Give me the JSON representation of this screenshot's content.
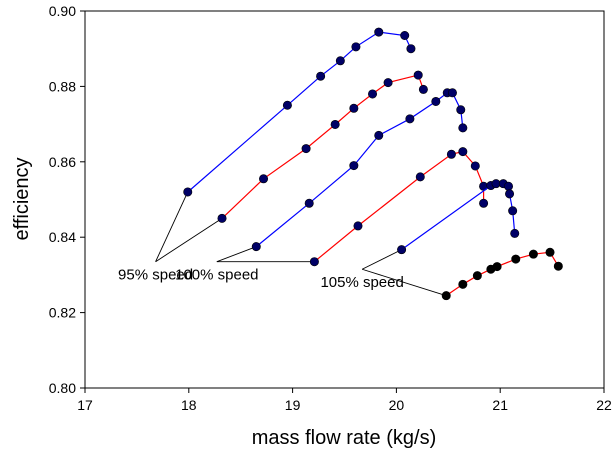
{
  "chart_data": {
    "type": "line",
    "xlabel": "mass flow rate (kg/s)",
    "ylabel": "efficiency",
    "xlim": [
      17,
      22
    ],
    "ylim": [
      0.8,
      0.9
    ],
    "x_ticks": [
      "17",
      "18",
      "19",
      "20",
      "21",
      "22"
    ],
    "y_ticks": [
      "0.80",
      "0.82",
      "0.84",
      "0.86",
      "0.88",
      "0.90"
    ],
    "grid": false,
    "legend": "none",
    "series": [
      {
        "color": "#0000ff",
        "marker_color": "#000066",
        "points": [
          [
            17.99,
            0.852
          ],
          [
            18.95,
            0.875
          ],
          [
            19.27,
            0.8827
          ],
          [
            19.46,
            0.8868
          ],
          [
            19.61,
            0.8905
          ],
          [
            19.83,
            0.8944
          ],
          [
            20.08,
            0.8935
          ],
          [
            20.14,
            0.89
          ]
        ]
      },
      {
        "color": "#ff0000",
        "marker_color": "#000066",
        "points": [
          [
            18.32,
            0.845
          ],
          [
            18.72,
            0.8555
          ],
          [
            19.13,
            0.8635
          ],
          [
            19.41,
            0.8699
          ],
          [
            19.59,
            0.8742
          ],
          [
            19.77,
            0.878
          ],
          [
            19.92,
            0.881
          ],
          [
            20.21,
            0.883
          ],
          [
            20.26,
            0.8792
          ]
        ]
      },
      {
        "color": "#0000ff",
        "marker_color": "#000066",
        "points": [
          [
            18.65,
            0.8375
          ],
          [
            19.16,
            0.849
          ],
          [
            19.59,
            0.859
          ],
          [
            19.83,
            0.867
          ],
          [
            20.13,
            0.8714
          ],
          [
            20.38,
            0.876
          ],
          [
            20.49,
            0.8783
          ],
          [
            20.54,
            0.8783
          ],
          [
            20.62,
            0.8738
          ],
          [
            20.64,
            0.869
          ]
        ]
      },
      {
        "color": "#ff0000",
        "marker_color": "#000066",
        "points": [
          [
            19.21,
            0.8335
          ],
          [
            19.63,
            0.843
          ],
          [
            20.23,
            0.856
          ],
          [
            20.53,
            0.862
          ],
          [
            20.64,
            0.8627
          ],
          [
            20.76,
            0.8589
          ],
          [
            20.84,
            0.8535
          ],
          [
            20.84,
            0.849
          ]
        ]
      },
      {
        "color": "#0000ff",
        "marker_color": "#000066",
        "points": [
          [
            20.05,
            0.8367
          ],
          [
            20.91,
            0.8537
          ],
          [
            20.96,
            0.8542
          ],
          [
            21.03,
            0.8542
          ],
          [
            21.08,
            0.8535
          ],
          [
            21.09,
            0.8515
          ],
          [
            21.12,
            0.847
          ],
          [
            21.14,
            0.841
          ]
        ]
      },
      {
        "color": "#ff0000",
        "marker_color": "#000000",
        "points": [
          [
            20.48,
            0.8245
          ],
          [
            20.64,
            0.8275
          ],
          [
            20.78,
            0.8298
          ],
          [
            20.91,
            0.8315
          ],
          [
            20.97,
            0.8322
          ],
          [
            21.15,
            0.8342
          ],
          [
            21.32,
            0.8355
          ],
          [
            21.48,
            0.836
          ],
          [
            21.56,
            0.8323
          ]
        ]
      }
    ],
    "annotations": [
      {
        "text": "95% speed",
        "anchor": [
          17.68,
          0.8335
        ],
        "targets": [
          [
            17.99,
            0.852
          ],
          [
            18.32,
            0.845
          ]
        ]
      },
      {
        "text": "100% speed",
        "anchor": [
          18.27,
          0.8335
        ],
        "targets": [
          [
            18.65,
            0.8375
          ],
          [
            19.21,
            0.8335
          ]
        ]
      },
      {
        "text": "105% speed",
        "anchor": [
          19.67,
          0.8315
        ],
        "targets": [
          [
            20.05,
            0.8367
          ],
          [
            20.48,
            0.8245
          ]
        ]
      }
    ]
  }
}
